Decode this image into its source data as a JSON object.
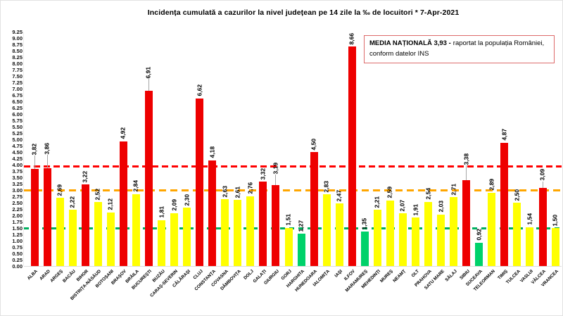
{
  "title": "Incidența cumulată a cazurilor la nivel județean pe 14 zile la ‰ de locuitori *  7-Apr-2021",
  "legend": {
    "bold_text": "MEDIA NAȚIONALĂ  3,93 -",
    "normal_text": "raportat la populația României, conform datelor INS",
    "border_color": "#dd6a6a"
  },
  "chart_data": {
    "type": "bar",
    "title": "Incidența cumulată a cazurilor la nivel județean pe 14 zile la ‰ de locuitori",
    "date": "7-Apr-2021",
    "ylim": [
      0,
      9.25
    ],
    "ytick_step": 0.25,
    "grid": false,
    "value_label_decimal_separator": ",",
    "categories": [
      "ALBA",
      "ARAD",
      "ARGEȘ",
      "BACĂU",
      "BIHOR",
      "BISTRIȚA-NĂSĂUD",
      "BOTOȘANI",
      "BRAȘOV",
      "BRĂILA",
      "BUCUREȘTI",
      "BUZĂU",
      "CARAȘ-SEVERIN",
      "CĂLĂRAȘI",
      "CLUJ",
      "CONSTANȚA",
      "COVASNA",
      "DÂMBOVIȚA",
      "DOLJ",
      "GALAȚI",
      "GIURGIU",
      "GORJ",
      "HARGHITA",
      "HUNEDOARA",
      "IALOMIȚA",
      "IAȘI",
      "ILFOV",
      "MARAMUREȘ",
      "MEHEDINȚI",
      "MUREȘ",
      "NEAMȚ",
      "OLT",
      "PRAHOVA",
      "SATU MARE",
      "SĂLAJ",
      "SIBIU",
      "SUCEAVA",
      "TELEORMAN",
      "TIMIȘ",
      "TULCEA",
      "VASLUI",
      "VÂLCEA",
      "VRANCEA"
    ],
    "values": [
      3.82,
      3.86,
      2.69,
      2.22,
      3.22,
      2.52,
      2.12,
      4.92,
      2.84,
      6.91,
      1.81,
      2.09,
      2.3,
      6.62,
      4.18,
      2.63,
      2.61,
      2.76,
      3.32,
      3.19,
      1.51,
      1.27,
      4.5,
      2.83,
      2.47,
      8.66,
      1.35,
      2.21,
      2.59,
      2.07,
      1.91,
      2.54,
      2.03,
      2.71,
      3.38,
      0.92,
      2.89,
      4.87,
      2.5,
      1.54,
      3.09,
      1.5
    ],
    "bar_color_rule": {
      "red_if_at_least": 3.0,
      "yellow_if_at_least": 1.5,
      "green_if_below": 1.5
    },
    "national_average": 3.93,
    "reference_lines": [
      {
        "value": 3.93,
        "color": "#ff0000",
        "style": "dashed"
      },
      {
        "value": 3.0,
        "color": "#ffa600",
        "style": "dashed"
      },
      {
        "value": 1.5,
        "color": "#00b05f",
        "style": "dashed"
      }
    ],
    "labels_with_leader_lines": [
      "ALBA",
      "ARAD",
      "BUCUREȘTI",
      "GIURGIU",
      "SIBIU",
      "VÂLCEA"
    ]
  },
  "colors": {
    "bar_red": "#ee0000",
    "bar_yellow": "#ffff00",
    "bar_green": "#00d26a",
    "leader_line": "#a6a6a6",
    "text": "#000000"
  }
}
